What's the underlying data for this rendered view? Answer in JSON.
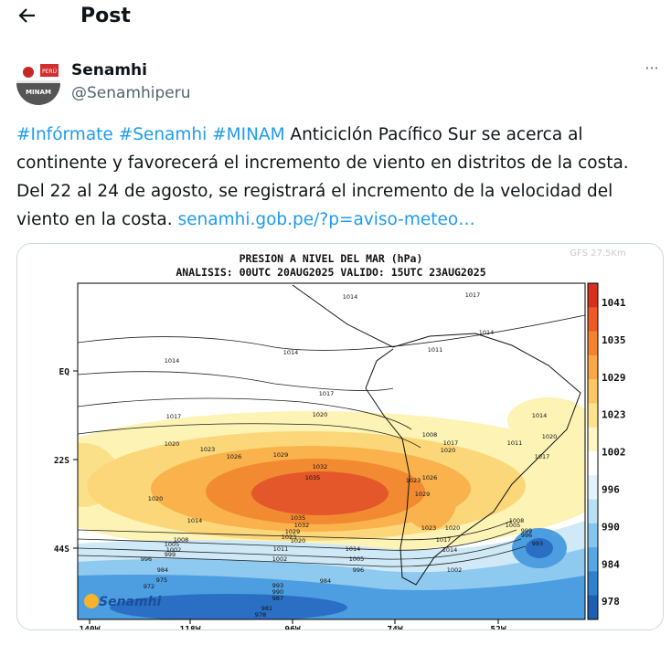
{
  "header": {
    "title": "Post"
  },
  "author": {
    "name": "Senamhi",
    "handle": "@Senamhiperu",
    "avatar_top": "PERÚ",
    "avatar_bottom": "MINAM",
    "menu": "···"
  },
  "tweet": {
    "hashtags": [
      "#Infórmate",
      "#Senamhi",
      "#MINAM"
    ],
    "lines": [
      "Anticiclón Pacífico Sur se acerca al",
      "continente y favorecerá el incremento de viento en distritos de la costa.",
      "Del 22 al 24 de agosto, se registrará el incremento de la velocidad del",
      "viento en la costa."
    ],
    "link": "senamhi.gob.pe/?p=aviso-meteo…"
  },
  "map": {
    "title": "PRESION A NIVEL DEL MAR (hPa)",
    "subtitle": "ANALISIS: 00UTC 20AUG2025 VALIDO: 15UTC 23AUG2025",
    "watermark": "GFS 27.5Km",
    "logo": "Senamhi",
    "lat_labels": [
      "EQ",
      "22S",
      "44S"
    ],
    "lon_labels": [
      "140W",
      "118W",
      "96W",
      "74W",
      "52W"
    ],
    "colorbar_labels": [
      "1041",
      "1035",
      "1029",
      "1023",
      "1002",
      "996",
      "990",
      "984",
      "978"
    ],
    "isobar_labels": [
      "1014",
      "1017",
      "1014",
      "1014",
      "1014",
      "1011",
      "1017",
      "1017",
      "1020",
      "1020",
      "1023",
      "1026",
      "1029",
      "1032",
      "1035",
      "1020",
      "1014",
      "1035",
      "1032",
      "1029",
      "1023",
      "1020",
      "1008",
      "1005",
      "1002",
      "999",
      "996",
      "984",
      "975",
      "972",
      "1011",
      "1014",
      "1005",
      "1002",
      "996",
      "993",
      "990",
      "987",
      "984",
      "981",
      "978",
      "1023",
      "1020",
      "1017",
      "1014",
      "1002",
      "993",
      "996",
      "999",
      "1008",
      "1017",
      "1020",
      "1026",
      "1029",
      "1023",
      "1005",
      "1008",
      "1011",
      "1014",
      "1017",
      "1020"
    ]
  }
}
